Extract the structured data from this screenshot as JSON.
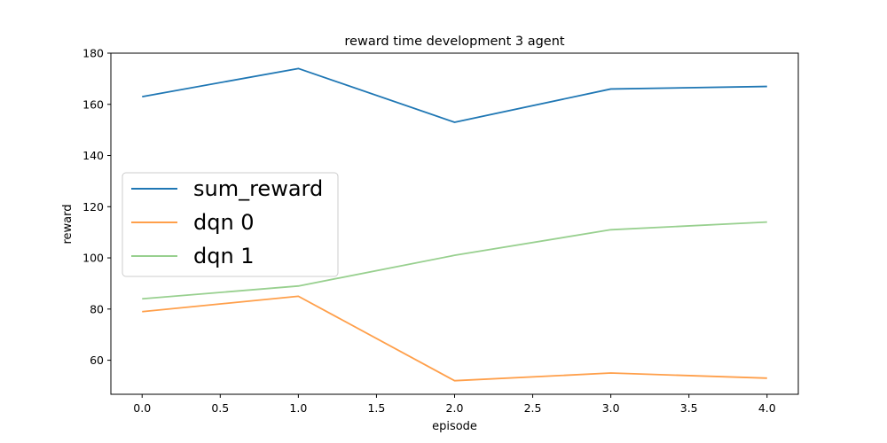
{
  "chart_data": {
    "type": "line",
    "title": "reward time development 3 agent",
    "xlabel": "episode",
    "ylabel": "reward",
    "x": [
      0.0,
      1.0,
      2.0,
      3.0,
      4.0
    ],
    "xlim": [
      -0.2,
      4.2
    ],
    "ylim": [
      46.7,
      180
    ],
    "xticks": [
      "0.0",
      "0.5",
      "1.0",
      "1.5",
      "2.0",
      "2.5",
      "3.0",
      "3.5",
      "4.0"
    ],
    "yticks": [
      "60",
      "80",
      "100",
      "120",
      "140",
      "160",
      "180"
    ],
    "grid": false,
    "legend_position": "center-left",
    "series": [
      {
        "name": "sum_reward",
        "color": "#1f77b4",
        "values": [
          163,
          174,
          153,
          166,
          167
        ]
      },
      {
        "name": "dqn 0",
        "color": "#ff9f4a",
        "values": [
          79,
          85,
          52,
          55,
          53
        ]
      },
      {
        "name": "dqn 1",
        "color": "#98d08f",
        "values": [
          84,
          89,
          101,
          111,
          114
        ]
      }
    ]
  }
}
